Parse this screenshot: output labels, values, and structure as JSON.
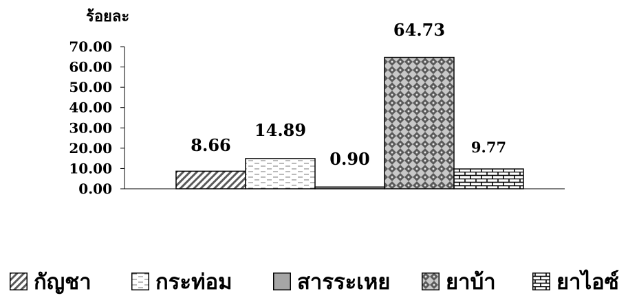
{
  "chart_data": {
    "type": "bar",
    "categories": [
      "กัญชา",
      "กระท่อม",
      "สารระเหย",
      "ยาบ้า",
      "ยาไอซ์"
    ],
    "values": [
      8.66,
      14.89,
      0.9,
      64.73,
      9.77
    ],
    "value_labels": [
      "8.66",
      "14.89",
      "0.90",
      "64.73",
      "9.77"
    ],
    "yticks": [
      "0.00",
      "10.00",
      "20.00",
      "30.00",
      "40.00",
      "50.00",
      "60.00",
      "70.00"
    ],
    "ytick_values": [
      0,
      10,
      20,
      30,
      40,
      50,
      60,
      70
    ],
    "ylabel": "ร้อยละ",
    "ylim": [
      0,
      70
    ],
    "grid": false,
    "legend_position": "bottom",
    "fills": [
      "diagonal-hatch",
      "dashed-lines",
      "gray-solid",
      "diamond-checker",
      "brick"
    ]
  }
}
